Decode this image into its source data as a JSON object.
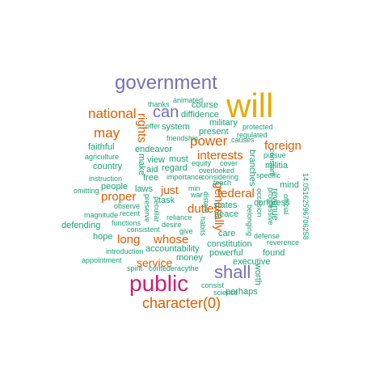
{
  "colors": {
    "teal": "#1b9e77",
    "orange": "#d95f02",
    "purple": "#7570b3",
    "magenta": "#e7298a",
    "gold": "#e6ab02",
    "crimson": "#cf1f6f"
  },
  "words": [
    {
      "text": "government",
      "color": "purple",
      "vertical": false
    },
    {
      "text": "will",
      "color": "gold",
      "vertical": false
    },
    {
      "text": "national",
      "color": "orange",
      "vertical": false
    },
    {
      "text": "can",
      "color": "purple",
      "vertical": false
    },
    {
      "text": "may",
      "color": "orange",
      "vertical": false
    },
    {
      "text": "power",
      "color": "orange",
      "vertical": false
    },
    {
      "text": "interests",
      "color": "orange",
      "vertical": false
    },
    {
      "text": "foreign",
      "color": "orange",
      "vertical": false
    },
    {
      "text": "federal",
      "color": "orange",
      "vertical": false
    },
    {
      "text": "proper",
      "color": "orange",
      "vertical": false
    },
    {
      "text": "duties",
      "color": "orange",
      "vertical": false
    },
    {
      "text": "just",
      "color": "orange",
      "vertical": false
    },
    {
      "text": "long",
      "color": "orange",
      "vertical": false
    },
    {
      "text": "whose",
      "color": "orange",
      "vertical": false
    },
    {
      "text": "service",
      "color": "orange",
      "vertical": false
    },
    {
      "text": "shall",
      "color": "purple",
      "vertical": false
    },
    {
      "text": "public",
      "color": "crimson",
      "vertical": false
    },
    {
      "text": "character(0)",
      "color": "orange",
      "vertical": false
    },
    {
      "text": "rights",
      "color": "orange",
      "vertical": true
    },
    {
      "text": "generally",
      "color": "orange",
      "vertical": true
    },
    {
      "text": "animated",
      "color": "teal",
      "vertical": false
    },
    {
      "text": "thanks",
      "color": "teal",
      "vertical": false
    },
    {
      "text": "course",
      "color": "teal",
      "vertical": false
    },
    {
      "text": "diffidence",
      "color": "teal",
      "vertical": false
    },
    {
      "text": "offer",
      "color": "teal",
      "vertical": false
    },
    {
      "text": "system",
      "color": "teal",
      "vertical": false
    },
    {
      "text": "military",
      "color": "teal",
      "vertical": false
    },
    {
      "text": "protected",
      "color": "teal",
      "vertical": false
    },
    {
      "text": "regulated",
      "color": "teal",
      "vertical": false
    },
    {
      "text": "present",
      "color": "teal",
      "vertical": false
    },
    {
      "text": "causes",
      "color": "teal",
      "vertical": false
    },
    {
      "text": "friendship",
      "color": "teal",
      "vertical": false
    },
    {
      "text": "faithful",
      "color": "teal",
      "vertical": false
    },
    {
      "text": "endeavor",
      "color": "teal",
      "vertical": false
    },
    {
      "text": "agriculture",
      "color": "teal",
      "vertical": false
    },
    {
      "text": "must",
      "color": "teal",
      "vertical": false
    },
    {
      "text": "view",
      "color": "teal",
      "vertical": false
    },
    {
      "text": "country",
      "color": "teal",
      "vertical": false
    },
    {
      "text": "aid",
      "color": "teal",
      "vertical": false
    },
    {
      "text": "regard",
      "color": "teal",
      "vertical": false
    },
    {
      "text": "equity",
      "color": "teal",
      "vertical": false
    },
    {
      "text": "cover",
      "color": "teal",
      "vertical": false
    },
    {
      "text": "overlooked",
      "color": "teal",
      "vertical": false
    },
    {
      "text": "pursue",
      "color": "teal",
      "vertical": false
    },
    {
      "text": "militia",
      "color": "teal",
      "vertical": false
    },
    {
      "text": "instruction",
      "color": "teal",
      "vertical": false
    },
    {
      "text": "free",
      "color": "teal",
      "vertical": false
    },
    {
      "text": "importance",
      "color": "teal",
      "vertical": false
    },
    {
      "text": "considering",
      "color": "teal",
      "vertical": false
    },
    {
      "text": "specific",
      "color": "teal",
      "vertical": false
    },
    {
      "text": "mind",
      "color": "teal",
      "vertical": false
    },
    {
      "text": "people",
      "color": "teal",
      "vertical": false
    },
    {
      "text": "laws",
      "color": "teal",
      "vertical": false
    },
    {
      "text": "min",
      "color": "teal",
      "vertical": false
    },
    {
      "text": "war",
      "color": "teal",
      "vertical": false
    },
    {
      "text": "teach",
      "color": "teal",
      "vertical": false
    },
    {
      "text": "omitting",
      "color": "teal",
      "vertical": false
    },
    {
      "text": "task",
      "color": "teal",
      "vertical": false
    },
    {
      "text": "states",
      "color": "teal",
      "vertical": false
    },
    {
      "text": "congress",
      "color": "teal",
      "vertical": false
    },
    {
      "text": "magnitude",
      "color": "teal",
      "vertical": false
    },
    {
      "text": "observe",
      "color": "teal",
      "vertical": false
    },
    {
      "text": "recent",
      "color": "teal",
      "vertical": false
    },
    {
      "text": "reliance",
      "color": "teal",
      "vertical": false
    },
    {
      "text": "peace",
      "color": "teal",
      "vertical": false
    },
    {
      "text": "defending",
      "color": "teal",
      "vertical": false
    },
    {
      "text": "functions",
      "color": "teal",
      "vertical": false
    },
    {
      "text": "desire",
      "color": "teal",
      "vertical": false
    },
    {
      "text": "consistent",
      "color": "teal",
      "vertical": false
    },
    {
      "text": "give",
      "color": "teal",
      "vertical": false
    },
    {
      "text": "care",
      "color": "teal",
      "vertical": false
    },
    {
      "text": "hope",
      "color": "teal",
      "vertical": false
    },
    {
      "text": "constitution",
      "color": "teal",
      "vertical": false
    },
    {
      "text": "reverence",
      "color": "teal",
      "vertical": false
    },
    {
      "text": "defense",
      "color": "teal",
      "vertical": false
    },
    {
      "text": "accountability",
      "color": "teal",
      "vertical": false
    },
    {
      "text": "powerful",
      "color": "teal",
      "vertical": false
    },
    {
      "text": "found",
      "color": "teal",
      "vertical": false
    },
    {
      "text": "introduction",
      "color": "teal",
      "vertical": false
    },
    {
      "text": "appointment",
      "color": "teal",
      "vertical": false
    },
    {
      "text": "money",
      "color": "teal",
      "vertical": false
    },
    {
      "text": "executive",
      "color": "teal",
      "vertical": false
    },
    {
      "text": "spirit",
      "color": "teal",
      "vertical": false
    },
    {
      "text": "confederacythe",
      "color": "teal",
      "vertical": false
    },
    {
      "text": "consist",
      "color": "teal",
      "vertical": false
    },
    {
      "text": "science",
      "color": "teal",
      "vertical": false
    },
    {
      "text": "perhaps",
      "color": "teal",
      "vertical": false
    },
    {
      "text": "make",
      "color": "teal",
      "vertical": true
    },
    {
      "text": "branches",
      "color": "teal",
      "vertical": true
    },
    {
      "text": "occasion",
      "color": "teal",
      "vertical": true
    },
    {
      "text": "constant",
      "color": "teal",
      "vertical": true
    },
    {
      "text": "progressive",
      "color": "teal",
      "vertical": true
    },
    {
      "text": "revenue",
      "color": "teal",
      "vertical": true
    },
    {
      "text": "official",
      "color": "teal",
      "vertical": true
    },
    {
      "text": "14.05162596706258",
      "color": "teal",
      "vertical": true
    },
    {
      "text": "preserve",
      "color": "teal",
      "vertical": true
    },
    {
      "text": "peculiar",
      "color": "teal",
      "vertical": true
    },
    {
      "text": "distant",
      "color": "teal",
      "vertical": true
    },
    {
      "text": "habits",
      "color": "teal",
      "vertical": true
    },
    {
      "text": "belonging",
      "color": "teal",
      "vertical": true
    },
    {
      "text": "worth",
      "color": "teal",
      "vertical": true
    }
  ]
}
